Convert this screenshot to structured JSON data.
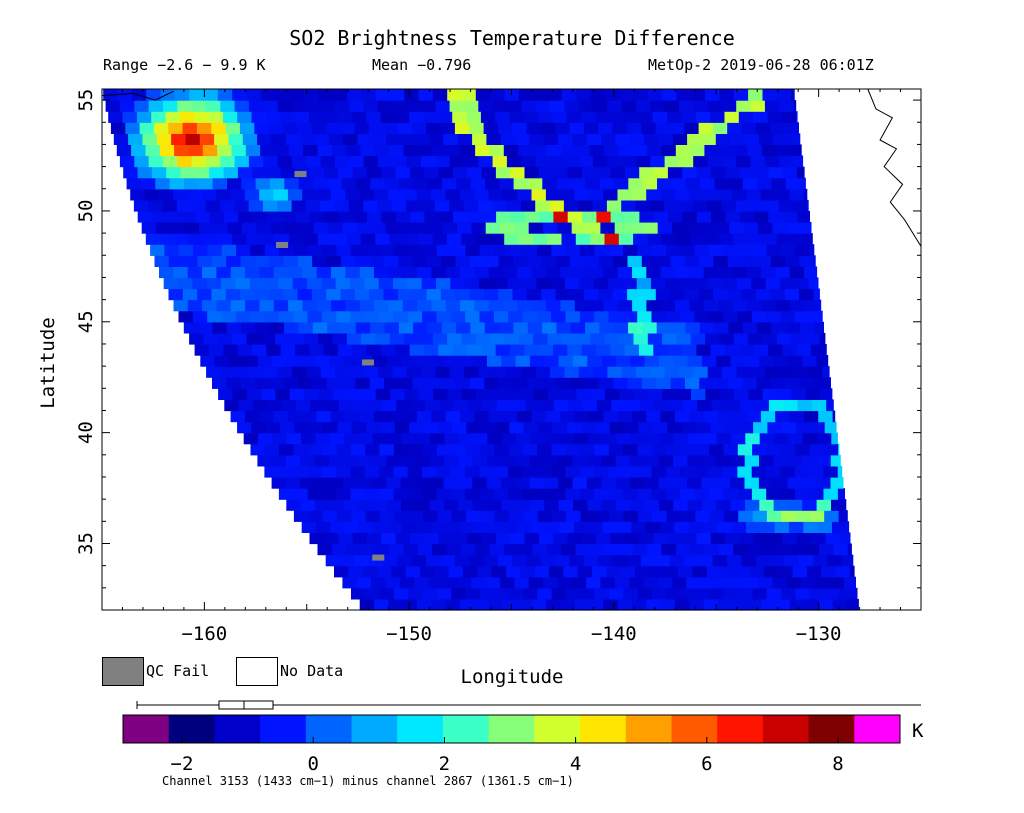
{
  "header": {
    "title": "SO2 Brightness Temperature Difference",
    "range": "Range −2.6 − 9.9 K",
    "mean": "Mean −0.796",
    "satellite": "MetOp-2 2019-06-28 06:01Z"
  },
  "legend": {
    "qc_fail": "QC Fail",
    "no_data": "No Data",
    "qc_fail_color": "#808080",
    "no_data_color": "#ffffff"
  },
  "colorbar": {
    "unit": "K",
    "note": "Channel 3153 (1433 cm−1) minus channel 2867 (1361.5 cm−1)",
    "ticks": [
      "−2",
      "0",
      "2",
      "4",
      "6",
      "8"
    ],
    "tick_values": [
      -2,
      0,
      2,
      4,
      6,
      8
    ],
    "range": [
      -2.6,
      9.0
    ],
    "colors": [
      "#7f0080",
      "#00007f",
      "#0000c8",
      "#0014ff",
      "#0064ff",
      "#00aaff",
      "#00e8ff",
      "#3affc6",
      "#88ff78",
      "#d2ff2e",
      "#ffe600",
      "#ffa000",
      "#ff5a00",
      "#ff1400",
      "#c80000",
      "#7f0000",
      "#ff00ff"
    ]
  },
  "chart_data": {
    "type": "heatmap",
    "title": "SO2 Brightness Temperature Difference",
    "xlabel": "Longitude",
    "ylabel": "Latitude",
    "xlim": [
      -165,
      -125
    ],
    "ylim": [
      32,
      55.5
    ],
    "x_ticks": [
      -160,
      -150,
      -140,
      -130
    ],
    "y_ticks": [
      35,
      40,
      45,
      50,
      55
    ],
    "x_tick_labels": [
      "−160",
      "−150",
      "−140",
      "−130"
    ],
    "y_tick_labels": [
      "35",
      "40",
      "45",
      "50",
      "55"
    ],
    "colorbar_label": "K",
    "value_range": [
      -2.6,
      9.9
    ],
    "mean": -0.796,
    "features": [
      {
        "name": "high values near -161, 53",
        "approx_value": 8
      },
      {
        "name": "band along -147 to -138 near 49",
        "approx_value": 5
      },
      {
        "name": "band near -132, 36",
        "approx_value": 2
      }
    ]
  }
}
